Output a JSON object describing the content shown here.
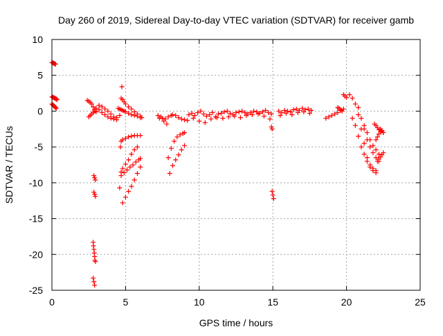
{
  "chart_data": {
    "type": "scatter",
    "title": "Day 260 of 2019, Sidereal Day-to-day VTEC variation (SDTVAR) for receiver gamb",
    "xlabel": "GPS time / hours",
    "ylabel": "SDTVAR / TECUs",
    "xlim": [
      0,
      25
    ],
    "ylim": [
      -25,
      10
    ],
    "xticks": [
      0,
      5,
      10,
      15,
      20,
      25
    ],
    "yticks": [
      -25,
      -20,
      -15,
      -10,
      -5,
      0,
      5,
      10
    ],
    "grid": true,
    "marker": "+",
    "color": "#ff0000",
    "series": [
      {
        "name": "seg-a",
        "x": [
          0.0,
          0.05,
          0.1,
          0.15,
          0.2,
          0.25
        ],
        "y": [
          6.8,
          6.75,
          6.7,
          6.65,
          6.6,
          6.55
        ]
      },
      {
        "name": "seg-b",
        "x": [
          0.0,
          0.05,
          0.1,
          0.15,
          0.2,
          0.25,
          0.3,
          0.35
        ],
        "y": [
          2.0,
          1.95,
          1.9,
          1.85,
          1.8,
          1.75,
          1.7,
          1.6
        ]
      },
      {
        "name": "seg-c",
        "x": [
          0.0,
          0.05,
          0.1,
          0.15,
          0.2,
          0.25,
          0.3
        ],
        "y": [
          1.0,
          0.9,
          0.8,
          0.7,
          0.6,
          0.5,
          0.4
        ]
      },
      {
        "name": "seg-d",
        "x": [
          2.4,
          2.5,
          2.6,
          2.7,
          2.8,
          2.9,
          3.0
        ],
        "y": [
          1.5,
          1.4,
          1.2,
          1.0,
          0.6,
          0.2,
          -0.1
        ]
      },
      {
        "name": "seg-e",
        "x": [
          2.5,
          2.6,
          2.7,
          2.8,
          2.9
        ],
        "y": [
          -0.8,
          -0.6,
          -0.4,
          -0.2,
          0.0
        ]
      },
      {
        "name": "seg-f",
        "x": [
          3.0,
          3.2,
          3.4,
          3.6,
          3.8,
          4.0,
          4.2,
          4.4,
          4.6
        ],
        "y": [
          0.4,
          0.2,
          -0.2,
          -0.5,
          -0.8,
          -1.0,
          -1.1,
          -0.9,
          -0.6
        ]
      },
      {
        "name": "seg-g",
        "x": [
          3.2,
          3.4,
          3.6,
          3.8,
          4.0,
          4.2,
          4.4
        ],
        "y": [
          0.8,
          0.6,
          0.3,
          0.0,
          -0.4,
          -0.8,
          -1.2
        ]
      },
      {
        "name": "seg-h",
        "x": [
          2.85,
          2.9,
          2.95
        ],
        "y": [
          -9.0,
          -9.3,
          -9.6
        ]
      },
      {
        "name": "seg-i",
        "x": [
          2.85,
          2.9,
          2.95
        ],
        "y": [
          -11.3,
          -11.6,
          -11.9
        ]
      },
      {
        "name": "seg-j",
        "x": [
          2.8,
          2.82,
          2.85,
          2.88,
          2.9,
          2.92,
          2.95
        ],
        "y": [
          -18.3,
          -18.8,
          -19.3,
          -19.8,
          -20.3,
          -20.8,
          -21.0
        ]
      },
      {
        "name": "seg-k",
        "x": [
          2.8,
          2.85,
          2.9
        ],
        "y": [
          -23.3,
          -23.8,
          -24.3
        ]
      },
      {
        "name": "seg-l",
        "x": [
          4.7,
          4.8,
          4.9,
          5.0,
          5.2,
          5.4,
          5.6,
          5.8,
          6.0,
          6.1
        ],
        "y": [
          1.8,
          1.6,
          1.3,
          1.0,
          0.6,
          0.3,
          -0.1,
          -0.4,
          -0.7,
          -0.9
        ]
      },
      {
        "name": "seg-m",
        "x": [
          4.75
        ],
        "y": [
          3.4
        ]
      },
      {
        "name": "seg-n",
        "x": [
          4.5,
          4.6,
          4.7,
          4.8,
          4.9,
          5.0,
          5.2,
          5.4,
          5.6,
          5.8,
          6.0
        ],
        "y": [
          0.4,
          0.3,
          0.2,
          0.1,
          0.0,
          -0.1,
          -0.3,
          -0.5,
          -0.6,
          -0.7,
          -0.9
        ]
      },
      {
        "name": "seg-o",
        "x": [
          4.7,
          4.8,
          5.0,
          5.2,
          5.4,
          5.6,
          5.8,
          6.0
        ],
        "y": [
          -4.2,
          -4.0,
          -3.8,
          -3.6,
          -3.5,
          -3.4,
          -3.4,
          -3.4
        ]
      },
      {
        "name": "seg-p",
        "x": [
          4.65
        ],
        "y": [
          -5.0
        ]
      },
      {
        "name": "seg-q",
        "x": [
          4.7,
          4.8,
          5.0,
          5.2,
          5.4,
          5.6,
          5.8
        ],
        "y": [
          -8.5,
          -8.0,
          -7.4,
          -6.8,
          -6.0,
          -5.4,
          -5.0
        ]
      },
      {
        "name": "seg-r",
        "x": [
          4.7,
          4.9,
          5.1,
          5.3,
          5.5,
          5.7,
          5.9,
          6.0
        ],
        "y": [
          -9.0,
          -8.6,
          -8.2,
          -7.8,
          -7.5,
          -7.1,
          -6.8,
          -6.6
        ]
      },
      {
        "name": "seg-s",
        "x": [
          4.6
        ],
        "y": [
          -10.7
        ]
      },
      {
        "name": "seg-t",
        "x": [
          4.8,
          5.0,
          5.2,
          5.4,
          5.6,
          5.8,
          6.0
        ],
        "y": [
          -12.8,
          -12.0,
          -11.2,
          -10.5,
          -9.6,
          -8.7,
          -7.8
        ]
      },
      {
        "name": "seg-u",
        "x": [
          7.3,
          7.5,
          7.7,
          7.9,
          8.1
        ],
        "y": [
          -1.0,
          -1.0,
          -1.1,
          -0.8,
          -0.6
        ]
      },
      {
        "name": "seg-v",
        "x": [
          7.2,
          7.4,
          7.6,
          7.8
        ],
        "y": [
          -0.6,
          -0.8,
          -1.4,
          -1.8
        ]
      },
      {
        "name": "seg-w",
        "x": [
          8.2,
          8.4,
          8.6,
          8.8,
          9.0
        ],
        "y": [
          -0.5,
          -0.6,
          -0.9,
          -1.1,
          -1.2
        ]
      },
      {
        "name": "seg-x",
        "x": [
          7.9,
          8.1,
          8.3,
          8.5,
          8.7,
          8.9,
          9.0
        ],
        "y": [
          -6.5,
          -5.2,
          -4.2,
          -3.6,
          -3.3,
          -3.1,
          -3.0
        ]
      },
      {
        "name": "seg-y",
        "x": [
          8.0,
          8.2,
          8.4,
          8.6,
          8.8,
          9.0
        ],
        "y": [
          -8.7,
          -7.6,
          -6.8,
          -6.1,
          -5.4,
          -4.8
        ]
      },
      {
        "name": "seg-z",
        "x": [
          9.3,
          9.5,
          9.7,
          9.9,
          10.1,
          10.3,
          10.5,
          10.7,
          10.9,
          11.1,
          11.3,
          11.5,
          11.7,
          11.9,
          12.1,
          12.3,
          12.5,
          12.7,
          12.9,
          13.1,
          13.3,
          13.5,
          13.7,
          13.9,
          14.1,
          14.3,
          14.5,
          14.7,
          14.9
        ],
        "y": [
          -0.5,
          -0.3,
          -0.6,
          -0.2,
          0.0,
          -0.4,
          -0.7,
          -0.5,
          -0.2,
          -0.8,
          -0.4,
          -0.3,
          -0.1,
          0.0,
          -0.3,
          -0.5,
          -0.2,
          -0.1,
          0.0,
          -0.2,
          -0.4,
          -0.2,
          0.0,
          -0.1,
          -0.3,
          -0.1,
          0.1,
          -0.2,
          -0.4
        ]
      },
      {
        "name": "seg-aa",
        "x": [
          9.2,
          9.6,
          10.0,
          10.4,
          10.8,
          11.2,
          11.6,
          12.0,
          12.4,
          12.8,
          13.2,
          13.6,
          14.0,
          14.4,
          14.8
        ],
        "y": [
          -1.3,
          -1.0,
          -1.4,
          -1.6,
          -1.1,
          -0.9,
          -1.0,
          -0.8,
          -0.7,
          -0.9,
          -0.6,
          -0.5,
          -0.4,
          -0.7,
          -1.1
        ]
      },
      {
        "name": "seg-ab",
        "x": [
          14.9,
          14.95
        ],
        "y": [
          -2.2,
          -2.5
        ]
      },
      {
        "name": "seg-ac",
        "x": [
          14.95,
          15.0,
          15.05
        ],
        "y": [
          -11.2,
          -11.7,
          -12.2
        ]
      },
      {
        "name": "seg-ad",
        "x": [
          15.4,
          15.6,
          15.8,
          16.0,
          16.2,
          16.4,
          16.6,
          16.8,
          17.0,
          17.2,
          17.4,
          17.6
        ],
        "y": [
          0.0,
          -0.2,
          0.1,
          0.0,
          -0.1,
          0.2,
          0.3,
          0.1,
          0.4,
          0.2,
          0.3,
          0.1
        ]
      },
      {
        "name": "seg-ae",
        "x": [
          15.5,
          15.9,
          16.3,
          16.7,
          17.1,
          17.5
        ],
        "y": [
          -0.6,
          -0.3,
          -0.5,
          -0.2,
          -0.1,
          -0.3
        ]
      },
      {
        "name": "seg-af",
        "x": [
          18.6,
          18.8,
          19.0,
          19.2,
          19.4,
          19.6,
          19.8
        ],
        "y": [
          -1.0,
          -0.8,
          -0.6,
          -0.4,
          -0.2,
          0.1,
          0.3
        ]
      },
      {
        "name": "seg-ag",
        "x": [
          19.4,
          19.5,
          19.6,
          19.7
        ],
        "y": [
          0.5,
          0.4,
          0.2,
          0.0
        ]
      },
      {
        "name": "seg-ah",
        "x": [
          19.8,
          19.9,
          20.0
        ],
        "y": [
          2.3,
          2.1,
          1.9
        ]
      },
      {
        "name": "seg-ai",
        "x": [
          20.2,
          20.4,
          20.6,
          20.8,
          21.0,
          21.2,
          21.4,
          21.6,
          21.8,
          22.0
        ],
        "y": [
          2.3,
          1.8,
          1.0,
          -0.5,
          -2.5,
          -4.5,
          -6.5,
          -7.5,
          -8.0,
          -8.3
        ]
      },
      {
        "name": "seg-aj",
        "x": [
          20.4,
          20.6,
          20.8,
          21.0,
          21.2,
          21.4,
          21.6,
          21.8,
          22.0
        ],
        "y": [
          -1.0,
          -2.0,
          -3.5,
          -5.0,
          -6.0,
          -7.0,
          -7.8,
          -8.3,
          -8.6
        ]
      },
      {
        "name": "seg-ak",
        "x": [
          20.8,
          21.0,
          21.2,
          21.4,
          21.6,
          21.8,
          22.0,
          22.2
        ],
        "y": [
          0.5,
          -1.0,
          -2.5,
          -4.0,
          -5.0,
          -5.8,
          -6.5,
          -7.0
        ]
      },
      {
        "name": "seg-al",
        "x": [
          21.2,
          21.4,
          21.6,
          21.8,
          22.0,
          22.2
        ],
        "y": [
          -2.0,
          -3.0,
          -4.0,
          -4.8,
          -5.4,
          -6.0
        ]
      },
      {
        "name": "seg-am",
        "x": [
          22.0,
          22.1,
          22.2,
          22.3,
          22.4,
          22.5
        ],
        "y": [
          -4.0,
          -3.6,
          -3.2,
          -2.9,
          -2.8,
          -3.0
        ]
      },
      {
        "name": "seg-an",
        "x": [
          21.9,
          22.0,
          22.1,
          22.2,
          22.3,
          22.4,
          22.5
        ],
        "y": [
          -1.8,
          -2.0,
          -2.3,
          -2.6,
          -2.5,
          -2.7,
          -3.0
        ]
      },
      {
        "name": "seg-ao",
        "x": [
          22.1,
          22.2,
          22.3,
          22.4,
          22.5
        ],
        "y": [
          -7.0,
          -6.7,
          -6.4,
          -6.1,
          -5.8
        ]
      }
    ]
  }
}
